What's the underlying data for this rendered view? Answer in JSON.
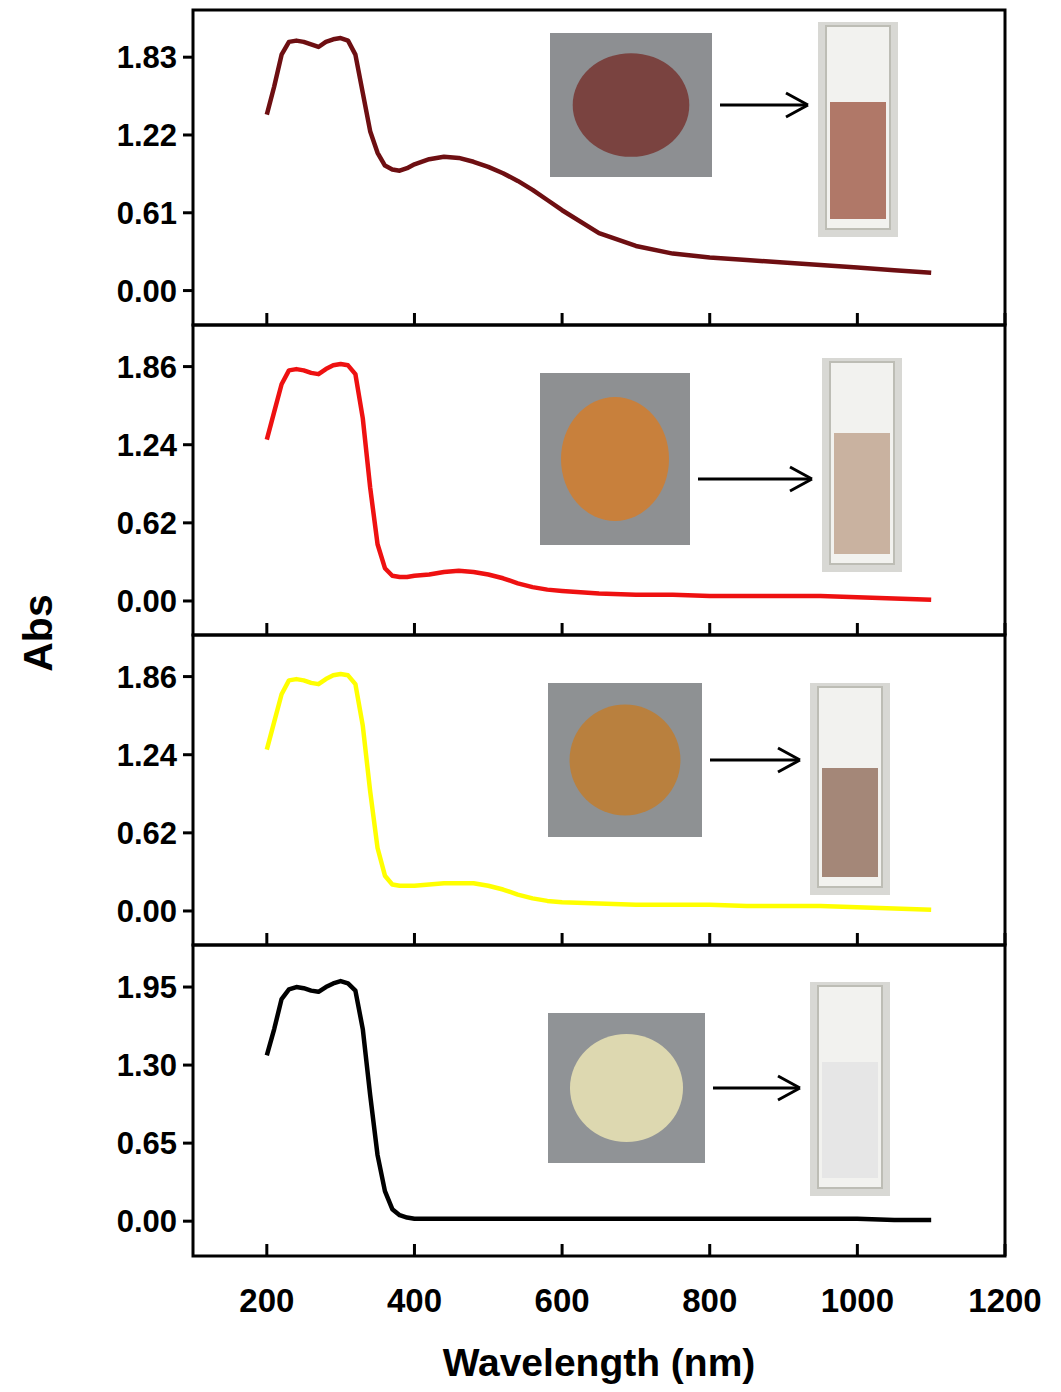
{
  "chart_data": {
    "type": "line",
    "xlabel": "Wavelength (nm)",
    "ylabel": "Abs",
    "xlim": [
      100,
      1200
    ],
    "xticks": [
      200,
      400,
      600,
      800,
      1000,
      1200
    ],
    "x": [
      200,
      210,
      220,
      230,
      240,
      250,
      260,
      270,
      280,
      290,
      300,
      310,
      320,
      330,
      340,
      350,
      360,
      370,
      380,
      390,
      400,
      420,
      440,
      460,
      480,
      500,
      520,
      540,
      560,
      580,
      600,
      650,
      700,
      750,
      800,
      850,
      900,
      950,
      1000,
      1050,
      1100
    ],
    "panels": [
      {
        "ylim": [
          -0.27,
          2.2
        ],
        "yticks": [
          {
            "value": 0,
            "label": "0.00"
          },
          0.61,
          1.22,
          1.83
        ],
        "series": [
          {
            "color": "#6e0f12",
            "values": [
              1.38,
              1.6,
              1.85,
              1.95,
              1.96,
              1.95,
              1.93,
              1.91,
              1.95,
              1.97,
              1.98,
              1.96,
              1.85,
              1.55,
              1.25,
              1.08,
              0.98,
              0.95,
              0.94,
              0.96,
              0.99,
              1.03,
              1.05,
              1.04,
              1.01,
              0.97,
              0.92,
              0.86,
              0.79,
              0.71,
              0.63,
              0.45,
              0.35,
              0.29,
              0.26,
              0.24,
              0.22,
              0.2,
              0.18,
              0.16,
              0.14
            ]
          }
        ]
      },
      {
        "ylim": [
          -0.27,
          2.19
        ],
        "yticks": [
          {
            "value": 0,
            "label": "0.00"
          },
          0.62,
          1.24,
          1.86
        ],
        "series": [
          {
            "color": "#ee1111",
            "values": [
              1.28,
              1.5,
              1.72,
              1.83,
              1.84,
              1.83,
              1.81,
              1.8,
              1.84,
              1.87,
              1.88,
              1.87,
              1.8,
              1.45,
              0.9,
              0.45,
              0.26,
              0.2,
              0.19,
              0.19,
              0.2,
              0.21,
              0.23,
              0.24,
              0.23,
              0.21,
              0.18,
              0.14,
              0.11,
              0.09,
              0.08,
              0.06,
              0.05,
              0.05,
              0.04,
              0.04,
              0.04,
              0.04,
              0.03,
              0.02,
              0.01
            ]
          }
        ]
      },
      {
        "ylim": [
          -0.27,
          2.19
        ],
        "yticks": [
          {
            "value": 0,
            "label": "0.00"
          },
          0.62,
          1.24,
          1.86
        ],
        "series": [
          {
            "color": "#ffff00",
            "values": [
              1.28,
              1.5,
              1.72,
              1.83,
              1.84,
              1.83,
              1.81,
              1.8,
              1.84,
              1.87,
              1.88,
              1.87,
              1.8,
              1.47,
              0.95,
              0.5,
              0.28,
              0.21,
              0.2,
              0.2,
              0.2,
              0.21,
              0.22,
              0.22,
              0.22,
              0.2,
              0.17,
              0.13,
              0.1,
              0.08,
              0.07,
              0.06,
              0.05,
              0.05,
              0.05,
              0.04,
              0.04,
              0.04,
              0.03,
              0.02,
              0.01
            ]
          }
        ]
      },
      {
        "ylim": [
          -0.29,
          2.3
        ],
        "yticks": [
          {
            "value": 0,
            "label": "0.00"
          },
          0.65,
          {
            "value": 1.3,
            "label": "1.30"
          },
          1.95
        ],
        "series": [
          {
            "color": "#000000",
            "values": [
              1.38,
              1.6,
              1.85,
              1.93,
              1.95,
              1.94,
              1.92,
              1.91,
              1.95,
              1.98,
              2.0,
              1.98,
              1.92,
              1.6,
              1.05,
              0.55,
              0.25,
              0.1,
              0.05,
              0.03,
              0.02,
              0.02,
              0.02,
              0.02,
              0.02,
              0.02,
              0.02,
              0.02,
              0.02,
              0.02,
              0.02,
              0.02,
              0.02,
              0.02,
              0.02,
              0.02,
              0.02,
              0.02,
              0.02,
              0.01,
              0.01
            ]
          }
        ]
      }
    ]
  }
}
